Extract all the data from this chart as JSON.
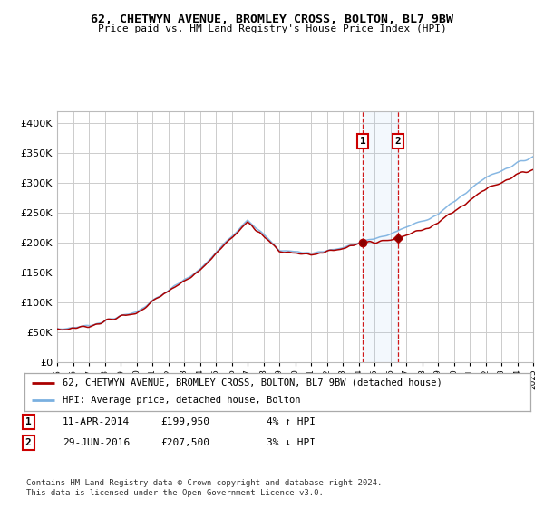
{
  "title": "62, CHETWYN AVENUE, BROMLEY CROSS, BOLTON, BL7 9BW",
  "subtitle": "Price paid vs. HM Land Registry's House Price Index (HPI)",
  "legend_line1": "62, CHETWYN AVENUE, BROMLEY CROSS, BOLTON, BL7 9BW (detached house)",
  "legend_line2": "HPI: Average price, detached house, Bolton",
  "table_rows": [
    {
      "num": "1",
      "date": "11-APR-2014",
      "price": "£199,950",
      "change": "4% ↑ HPI"
    },
    {
      "num": "2",
      "date": "29-JUN-2016",
      "price": "£207,500",
      "change": "3% ↓ HPI"
    }
  ],
  "footnote1": "Contains HM Land Registry data © Crown copyright and database right 2024.",
  "footnote2": "This data is licensed under the Open Government Licence v3.0.",
  "hpi_color": "#7ab0e0",
  "price_color": "#aa0000",
  "ylim": [
    0,
    420000
  ],
  "yticks": [
    0,
    50000,
    100000,
    150000,
    200000,
    250000,
    300000,
    350000,
    400000
  ],
  "year_start": 1995,
  "year_end": 2025,
  "background_color": "#ffffff",
  "grid_color": "#cccccc",
  "t1_year": 2014.275,
  "t1_price": 199950,
  "t2_year": 2016.495,
  "t2_price": 207500
}
